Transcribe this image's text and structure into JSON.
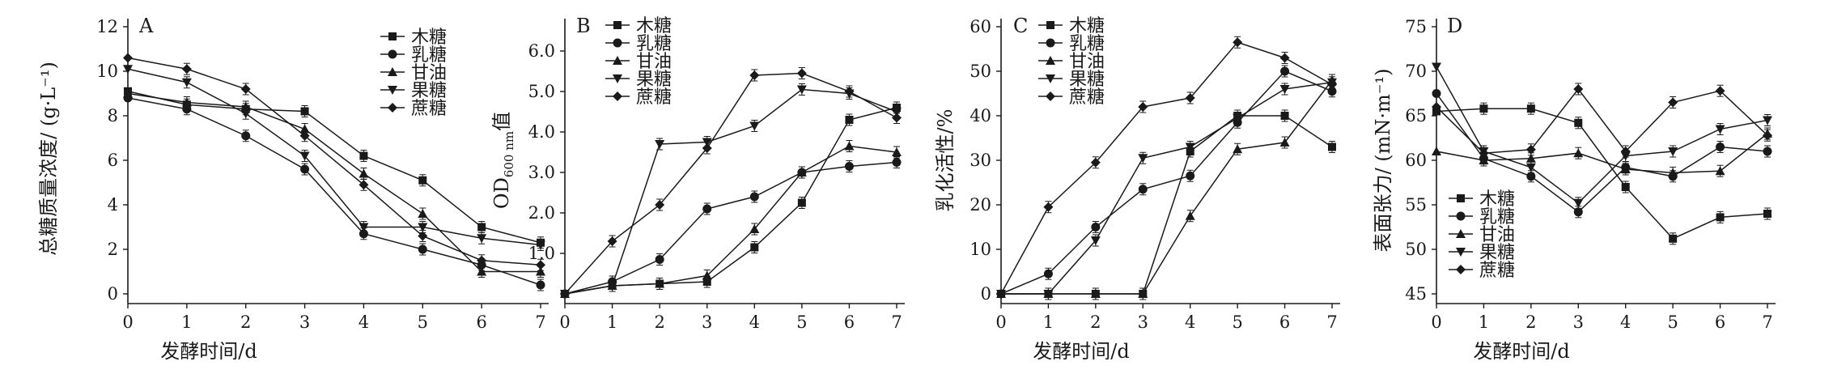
{
  "chart_data": [
    {
      "panel_label": "A",
      "type": "line",
      "xlabel": "发酵时间/d",
      "ylabel": "总糖质量浓度/ (g·L⁻¹)",
      "x": [
        0,
        1,
        2,
        3,
        4,
        5,
        6,
        7
      ],
      "xlim": [
        0,
        7
      ],
      "ylim": [
        0,
        12
      ],
      "yticks": [
        0,
        2,
        4,
        6,
        8,
        10,
        12
      ],
      "legend_position": "top-right",
      "series": [
        {
          "name": "木糖",
          "marker": "square",
          "values": [
            9.1,
            8.5,
            8.3,
            8.2,
            6.2,
            5.1,
            3.0,
            2.3
          ]
        },
        {
          "name": "乳糖",
          "marker": "circle",
          "values": [
            8.8,
            8.3,
            7.1,
            5.6,
            2.7,
            2.0,
            1.3,
            0.4
          ]
        },
        {
          "name": "甘油",
          "marker": "triangle-up",
          "values": [
            9.0,
            8.6,
            8.4,
            7.4,
            5.4,
            3.6,
            1.0,
            1.0
          ]
        },
        {
          "name": "果糖",
          "marker": "triangle-down",
          "values": [
            10.1,
            9.5,
            8.1,
            6.2,
            3.0,
            3.0,
            2.5,
            2.2
          ]
        },
        {
          "name": "蔗糖",
          "marker": "diamond",
          "values": [
            10.6,
            10.1,
            9.2,
            7.1,
            4.9,
            2.6,
            1.5,
            1.3
          ]
        }
      ]
    },
    {
      "panel_label": "B",
      "type": "line",
      "xlabel": "",
      "ylabel": "OD600 nm值",
      "ylabel_parts": {
        "main": "OD",
        "sub": "600 nm",
        "tail": "值"
      },
      "x": [
        0,
        1,
        2,
        3,
        4,
        5,
        6,
        7
      ],
      "xlim": [
        0,
        7
      ],
      "ylim": [
        0,
        6.6
      ],
      "yticks": [
        1.0,
        2.0,
        3.0,
        4.0,
        5.0,
        6.0
      ],
      "ytick_labels": [
        "1.0",
        "2.0",
        "3.0",
        "4.0",
        "5.0",
        "6.0"
      ],
      "legend_position": "top-left",
      "series": [
        {
          "name": "木糖",
          "marker": "square",
          "values": [
            0.0,
            0.2,
            0.25,
            0.3,
            1.15,
            2.25,
            4.3,
            4.6
          ]
        },
        {
          "name": "乳糖",
          "marker": "circle",
          "values": [
            0.0,
            0.3,
            0.85,
            2.1,
            2.4,
            3.0,
            3.15,
            3.25
          ]
        },
        {
          "name": "甘油",
          "marker": "triangle-up",
          "values": [
            0.0,
            0.2,
            0.25,
            0.45,
            1.6,
            3.0,
            3.65,
            3.5
          ]
        },
        {
          "name": "果糖",
          "marker": "triangle-down",
          "values": [
            0.0,
            0.2,
            3.7,
            3.75,
            4.15,
            5.05,
            4.95,
            4.5
          ]
        },
        {
          "name": "蔗糖",
          "marker": "diamond",
          "values": [
            0.0,
            1.3,
            2.2,
            3.6,
            5.4,
            5.45,
            5.0,
            4.35
          ]
        }
      ]
    },
    {
      "panel_label": "C",
      "type": "line",
      "xlabel": "发酵时间/d",
      "ylabel": "乳化活性/%",
      "x": [
        0,
        1,
        2,
        3,
        4,
        5,
        6,
        7
      ],
      "xlim": [
        0,
        7
      ],
      "ylim": [
        0,
        60
      ],
      "yticks": [
        0,
        10,
        20,
        30,
        40,
        50,
        60
      ],
      "legend_position": "top-left",
      "series": [
        {
          "name": "木糖",
          "marker": "square",
          "values": [
            0,
            0,
            0,
            0,
            32,
            40,
            40,
            33
          ]
        },
        {
          "name": "乳糖",
          "marker": "circle",
          "values": [
            0,
            4.5,
            15,
            23.5,
            26.5,
            38.5,
            50,
            45.5
          ]
        },
        {
          "name": "甘油",
          "marker": "triangle-up",
          "values": [
            0,
            0,
            0,
            0,
            17.5,
            32.5,
            34,
            48
          ]
        },
        {
          "name": "果糖",
          "marker": "triangle-down",
          "values": [
            0,
            0,
            12,
            30.5,
            33,
            39.5,
            46,
            47.5
          ]
        },
        {
          "name": "蔗糖",
          "marker": "diamond",
          "values": [
            0,
            19.5,
            29.5,
            42,
            44,
            56.5,
            53,
            47
          ]
        }
      ]
    },
    {
      "panel_label": "D",
      "type": "line",
      "xlabel": "发酵时间/d",
      "ylabel": "表面张力/ (mN·m⁻¹)",
      "x": [
        0,
        1,
        2,
        3,
        4,
        5,
        6,
        7
      ],
      "xlim": [
        0,
        7
      ],
      "ylim": [
        45,
        75
      ],
      "yticks": [
        45,
        50,
        55,
        60,
        65,
        70,
        75
      ],
      "legend_position": "bottom-left",
      "series": [
        {
          "name": "木糖",
          "marker": "square",
          "values": [
            65.5,
            65.8,
            65.8,
            64.2,
            57.0,
            51.2,
            53.6,
            54.0
          ]
        },
        {
          "name": "乳糖",
          "marker": "circle",
          "values": [
            67.5,
            60.2,
            58.2,
            54.2,
            59.2,
            58.2,
            61.5,
            61.0
          ]
        },
        {
          "name": "甘油",
          "marker": "triangle-up",
          "values": [
            61.0,
            60.0,
            60.2,
            60.8,
            59.0,
            58.6,
            58.8,
            63.0
          ]
        },
        {
          "name": "果糖",
          "marker": "triangle-down",
          "values": [
            70.5,
            61.0,
            59.2,
            55.2,
            60.5,
            61.0,
            63.5,
            64.5
          ]
        },
        {
          "name": "蔗糖",
          "marker": "diamond",
          "values": [
            66.0,
            60.8,
            61.2,
            68.0,
            61.0,
            66.5,
            67.8,
            62.8
          ]
        }
      ]
    }
  ]
}
